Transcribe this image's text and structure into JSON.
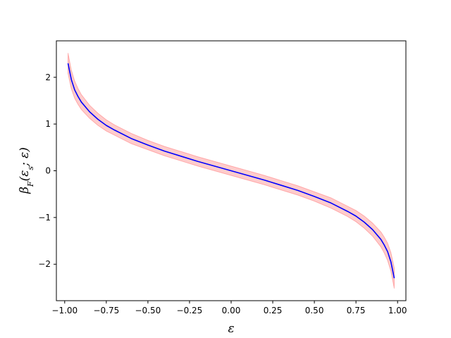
{
  "chart_data": {
    "type": "area",
    "title": "",
    "xlabel": "ε",
    "ylabel": "β_F(ε_s; ε)",
    "ylabel_parts": {
      "base": "β",
      "sub": "F",
      "args": "(ε",
      "args_sub": "s",
      "args_tail": "; ε)"
    },
    "xlim": [
      -1.05,
      1.05
    ],
    "ylim": [
      -2.78,
      2.78
    ],
    "xticks": [
      -1.0,
      -0.75,
      -0.5,
      -0.25,
      0.0,
      0.25,
      0.5,
      0.75,
      1.0
    ],
    "xtick_labels": [
      "−1.00",
      "−0.75",
      "−0.50",
      "−0.25",
      "0.00",
      "0.25",
      "0.50",
      "0.75",
      "1.00"
    ],
    "yticks": [
      -2,
      -1,
      0,
      1,
      2
    ],
    "ytick_labels": [
      "−2",
      "−1",
      "0",
      "1",
      "2"
    ],
    "grid": false,
    "series": [
      {
        "kind": "line",
        "color": "#0000ff",
        "x": [
          -0.98,
          -0.96,
          -0.94,
          -0.92,
          -0.9,
          -0.85,
          -0.8,
          -0.75,
          -0.7,
          -0.6,
          -0.5,
          -0.4,
          -0.3,
          -0.2,
          -0.1,
          0.0,
          0.1,
          0.2,
          0.3,
          0.4,
          0.5,
          0.6,
          0.7,
          0.75,
          0.8,
          0.85,
          0.9,
          0.92,
          0.94,
          0.96,
          0.98
        ],
        "y": [
          2.3,
          1.95,
          1.73,
          1.59,
          1.47,
          1.26,
          1.1,
          0.97,
          0.87,
          0.69,
          0.55,
          0.42,
          0.31,
          0.2,
          0.1,
          0.0,
          -0.1,
          -0.2,
          -0.31,
          -0.42,
          -0.55,
          -0.69,
          -0.87,
          -0.97,
          -1.1,
          -1.26,
          -1.47,
          -1.59,
          -1.73,
          -1.95,
          -2.3
        ]
      },
      {
        "kind": "band",
        "color": "#ff0000",
        "alpha": 0.2,
        "x": [
          -0.98,
          -0.96,
          -0.94,
          -0.92,
          -0.9,
          -0.85,
          -0.8,
          -0.75,
          -0.7,
          -0.6,
          -0.5,
          -0.4,
          -0.3,
          -0.2,
          -0.1,
          0.0,
          0.1,
          0.2,
          0.3,
          0.4,
          0.5,
          0.6,
          0.7,
          0.75,
          0.8,
          0.85,
          0.9,
          0.92,
          0.94,
          0.96,
          0.98
        ],
        "upper": [
          2.52,
          2.15,
          1.92,
          1.76,
          1.63,
          1.4,
          1.23,
          1.09,
          0.98,
          0.8,
          0.65,
          0.52,
          0.41,
          0.3,
          0.2,
          0.1,
          0.0,
          -0.1,
          -0.21,
          -0.32,
          -0.45,
          -0.58,
          -0.76,
          -0.85,
          -0.97,
          -1.12,
          -1.31,
          -1.42,
          -1.55,
          -1.75,
          -2.08
        ],
        "lower": [
          2.08,
          1.75,
          1.55,
          1.42,
          1.31,
          1.12,
          0.97,
          0.85,
          0.76,
          0.58,
          0.45,
          0.32,
          0.21,
          0.1,
          0.0,
          -0.1,
          -0.2,
          -0.3,
          -0.41,
          -0.52,
          -0.65,
          -0.8,
          -0.98,
          -1.09,
          -1.23,
          -1.4,
          -1.63,
          -1.76,
          -1.92,
          -2.15,
          -2.52
        ]
      }
    ]
  }
}
